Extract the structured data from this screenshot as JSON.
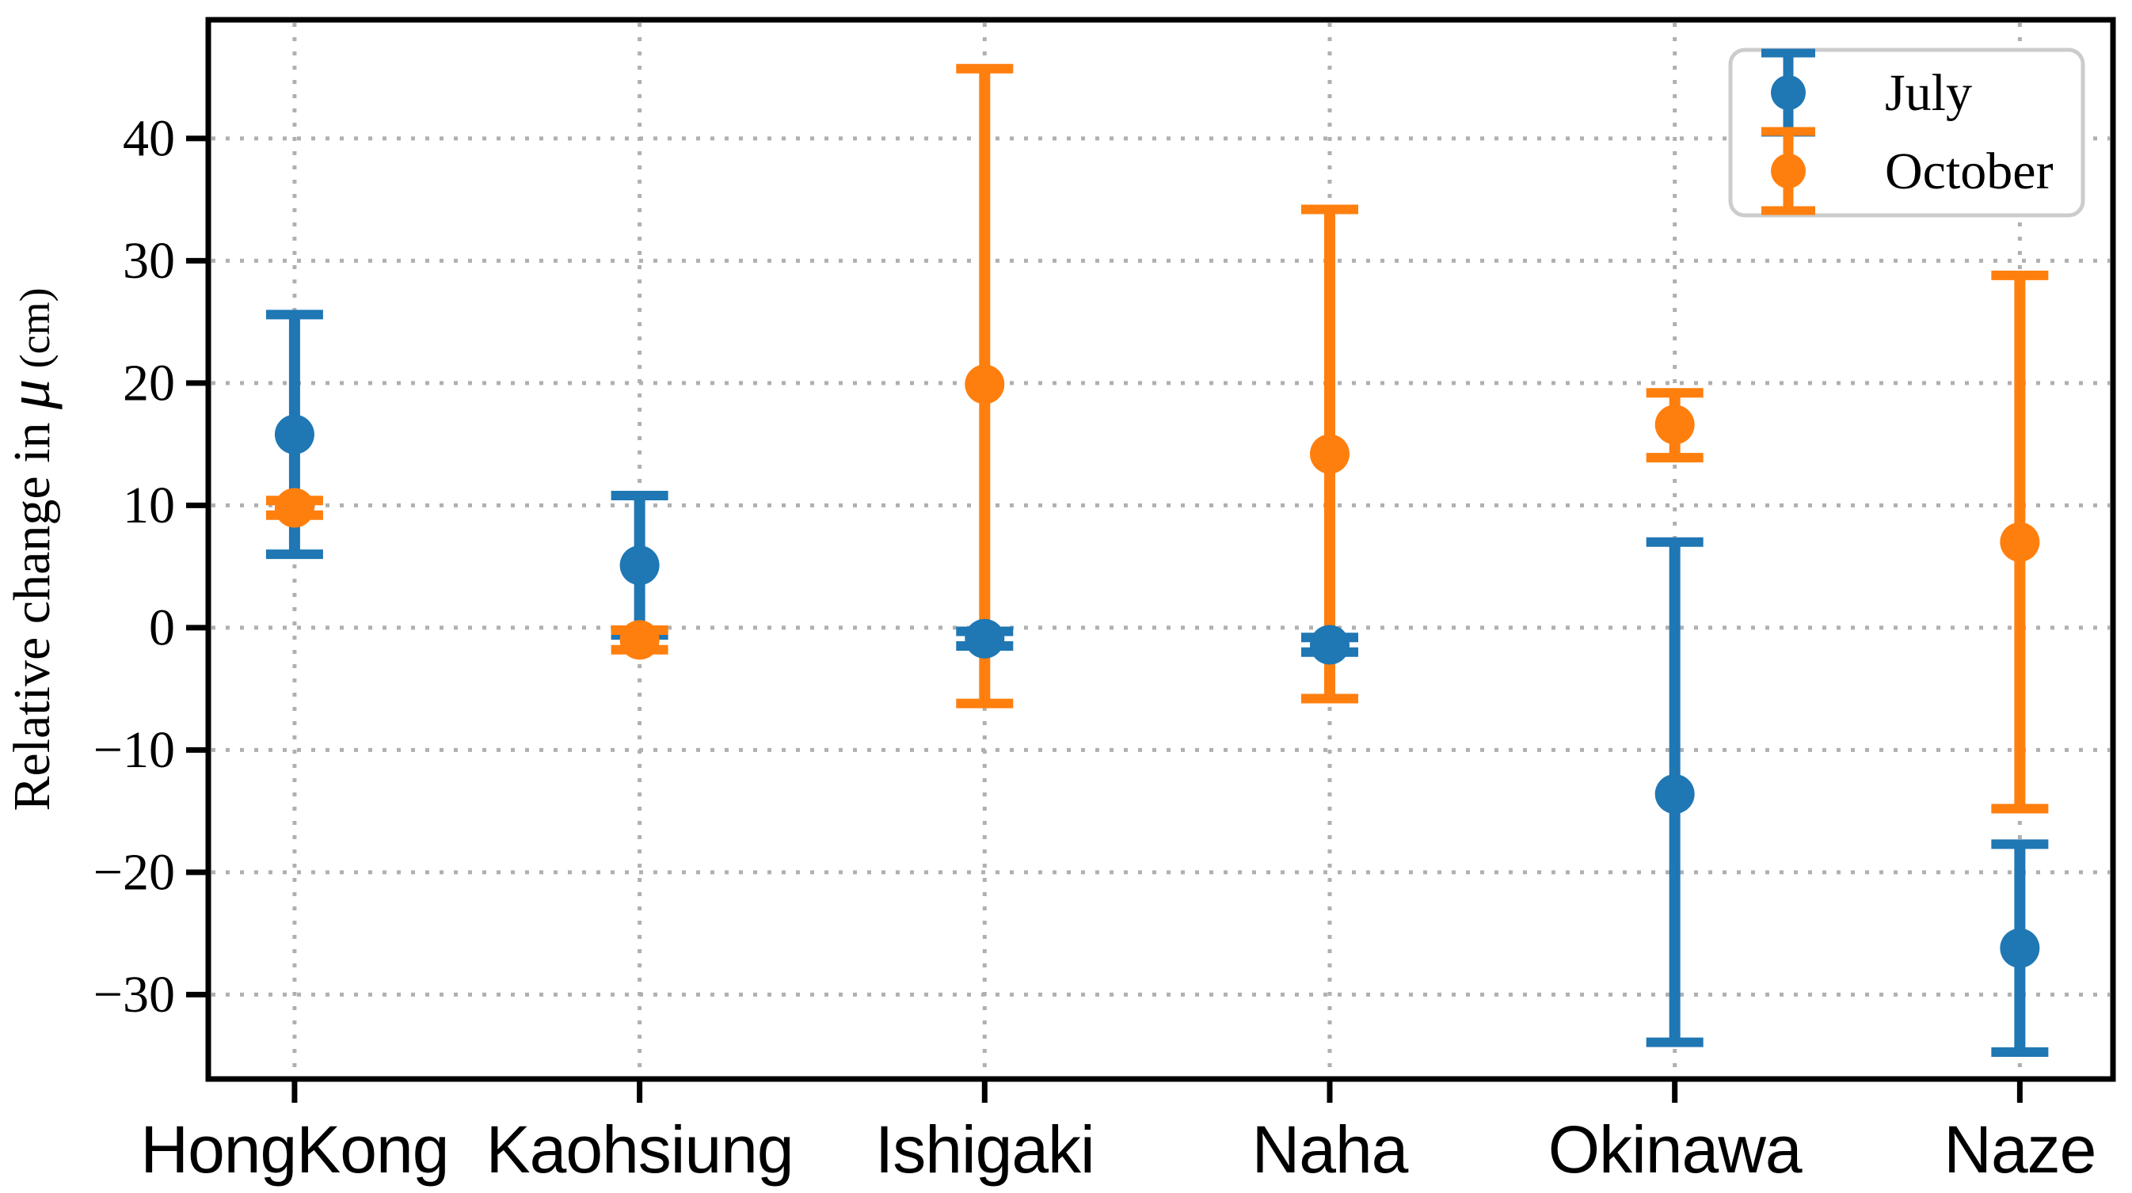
{
  "figure": {
    "background": "#ffffff",
    "spine_color": "#000000",
    "grid_color": "#b0b0b0",
    "legend_border_color": "#cccccc",
    "tick_label_color": "#000000"
  },
  "chart_data": {
    "type": "errorbar",
    "title": "",
    "categories": [
      "HongKong",
      "Kaohsiung",
      "Ishigaki",
      "Naha",
      "Okinawa",
      "Naze"
    ],
    "series": [
      {
        "name": "July",
        "color": "#1f77b4",
        "values": [
          15.8,
          5.1,
          -0.9,
          -1.4,
          -13.6,
          -26.2
        ],
        "err_low": [
          6.0,
          -0.6,
          -1.5,
          -2.0,
          -33.9,
          -34.7
        ],
        "err_high": [
          25.6,
          10.8,
          -0.3,
          -0.8,
          7.0,
          -17.7
        ]
      },
      {
        "name": "October",
        "color": "#ff7f0e",
        "values": [
          9.8,
          -1.0,
          19.9,
          14.2,
          16.6,
          7.0
        ],
        "err_low": [
          9.2,
          -1.8,
          -6.2,
          -5.8,
          13.9,
          -14.8
        ],
        "err_high": [
          10.4,
          -0.2,
          45.7,
          34.2,
          19.2,
          28.8
        ]
      }
    ],
    "ylabel_prefix": "Relative change in ",
    "ylabel_mu": "μ",
    "ylabel_unit": "（cm）",
    "ylabel_unit_plain": "(cm)",
    "yticks": [
      -30,
      -20,
      -10,
      0,
      10,
      20,
      30,
      40
    ],
    "ylim": [
      -36.9,
      49.7
    ],
    "xlim": [
      -0.25,
      5.27
    ],
    "grid": "dotted",
    "legend_position": "upper right",
    "legend_labels": [
      "July",
      "October"
    ]
  }
}
